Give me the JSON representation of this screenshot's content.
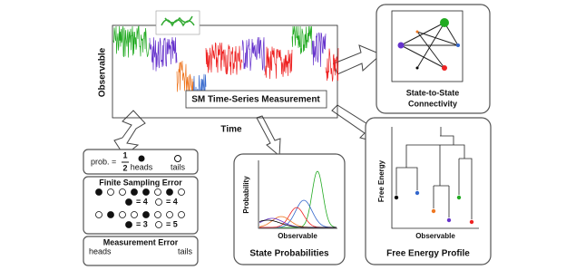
{
  "time_series": {
    "y_label": "Observable",
    "x_label": "Time",
    "title": "SM Time-Series Measurement"
  },
  "connectivity": {
    "title_lines": [
      "State-to-State",
      "Connectivity"
    ]
  },
  "coin": {
    "prob_label": "prob. =",
    "numerator": "1",
    "denominator": "2",
    "heads": "heads",
    "tails": "tails"
  },
  "finite_sampling": {
    "title": "Finite Sampling Error",
    "counts": [
      "= 4",
      "= 4",
      "= 3",
      "= 5"
    ]
  },
  "measurement": {
    "title": "Measurement Error",
    "heads": "heads",
    "tails": "tails"
  },
  "state_probabilities": {
    "y_label": "Probability",
    "x_label": "Observable",
    "title": "State Probabilities"
  },
  "free_energy": {
    "y_label": "Free Energy",
    "x_label": "Observable",
    "title": "Free Energy Profile"
  }
}
